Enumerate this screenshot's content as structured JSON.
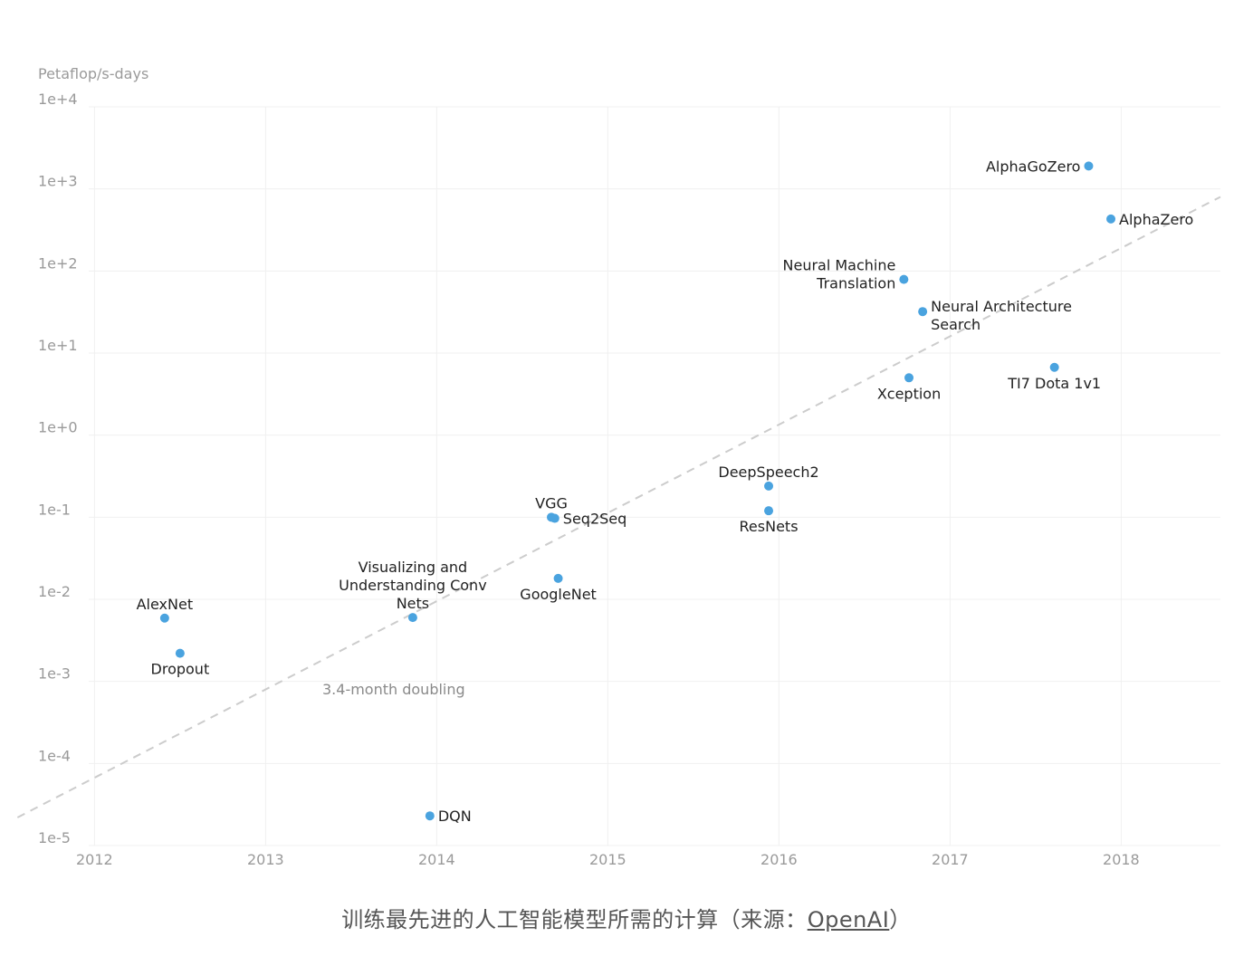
{
  "chart_data": {
    "type": "scatter",
    "ylabel": "Petaflop/s-days",
    "yscale": "log",
    "ylim": [
      1e-05,
      10000.0
    ],
    "xlim": [
      2011.67,
      2018.58
    ],
    "yticks": [
      "1e+4",
      "1e+3",
      "1e+2",
      "1e+1",
      "1e+0",
      "1e-1",
      "1e-2",
      "1e-3",
      "1e-4",
      "1e-5"
    ],
    "xticks": [
      "2012",
      "2013",
      "2014",
      "2015",
      "2016",
      "2017",
      "2018"
    ],
    "grid": true,
    "point_color": "#4aa3df",
    "points": [
      {
        "name": "AlexNet",
        "x": 2012.41,
        "y": 0.0059,
        "label_pos": "above"
      },
      {
        "name": "Dropout",
        "x": 2012.5,
        "y": 0.0022,
        "label_pos": "below"
      },
      {
        "name": "DQN",
        "x": 2013.96,
        "y": 2.3e-05,
        "label_pos": "right"
      },
      {
        "name": "Visualizing and|Understanding Conv|Nets",
        "x": 2013.86,
        "y": 0.006,
        "label_pos": "above"
      },
      {
        "name": "VGG",
        "x": 2014.67,
        "y": 0.1,
        "label_pos": "above"
      },
      {
        "name": "Seq2Seq",
        "x": 2014.69,
        "y": 0.097,
        "label_pos": "right"
      },
      {
        "name": "GoogleNet",
        "x": 2014.71,
        "y": 0.018,
        "label_pos": "below"
      },
      {
        "name": "DeepSpeech2",
        "x": 2015.94,
        "y": 0.24,
        "label_pos": "above"
      },
      {
        "name": "ResNets",
        "x": 2015.94,
        "y": 0.12,
        "label_pos": "below"
      },
      {
        "name": "Xception",
        "x": 2016.76,
        "y": 5.0,
        "label_pos": "below"
      },
      {
        "name": "Neural Machine|Translation",
        "x": 2016.73,
        "y": 79,
        "label_pos": "left"
      },
      {
        "name": "Neural Architecture|Search",
        "x": 2016.84,
        "y": 32,
        "label_pos": "right"
      },
      {
        "name": "TI7 Dota 1v1",
        "x": 2017.61,
        "y": 6.7,
        "label_pos": "below"
      },
      {
        "name": "AlphaGoZero",
        "x": 2017.81,
        "y": 1900,
        "label_pos": "left"
      },
      {
        "name": "AlphaZero",
        "x": 2017.94,
        "y": 430,
        "label_pos": "right"
      }
    ],
    "trend_line": {
      "label": "3.4-month doubling",
      "x": [
        2011.55,
        2018.58
      ],
      "y": [
        2.2e-05,
        800
      ],
      "style": "dashed"
    }
  },
  "caption": {
    "text": "训练最先进的人工智能模型所需的计算（来源：",
    "link": "OpenAI",
    "end": "）"
  }
}
